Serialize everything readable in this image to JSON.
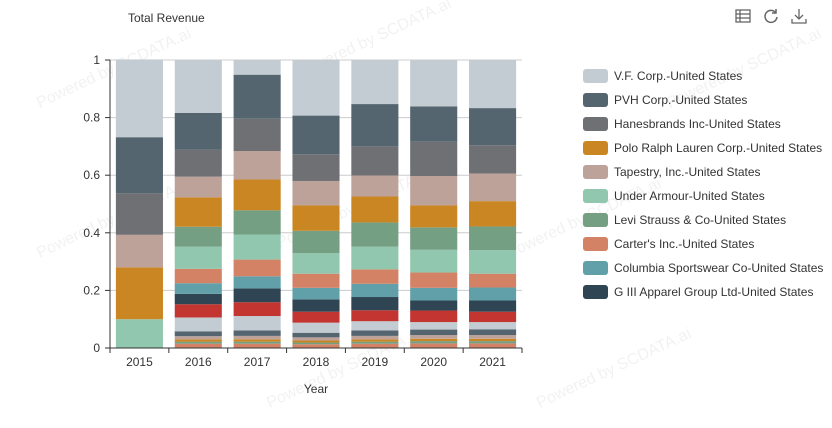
{
  "toolbar": {
    "data_view": "data-view-icon",
    "restore": "refresh-icon",
    "save": "download-icon"
  },
  "watermark": "Powered by SCDATA.ai",
  "chart_data": {
    "type": "bar",
    "stacked": true,
    "title": "Total Revenue",
    "xlabel": "Year",
    "ylabel": "",
    "ylim": [
      0,
      1
    ],
    "yticks": [
      "0",
      "0.2",
      "0.4",
      "0.6",
      "0.8",
      "1"
    ],
    "categories": [
      "2015",
      "2016",
      "2017",
      "2018",
      "2019",
      "2020",
      "2021"
    ],
    "legend_position": "right",
    "series": [
      {
        "name": null,
        "color": "#d48265",
        "values": [
          0,
          0.015,
          0.015,
          0.013,
          0.015,
          0.016,
          0.016
        ]
      },
      {
        "name": null,
        "color": "#749f83",
        "values": [
          0,
          0.007,
          0.007,
          0.006,
          0.007,
          0.008,
          0.008
        ]
      },
      {
        "name": null,
        "color": "#ca8622",
        "values": [
          0,
          0.008,
          0.008,
          0.007,
          0.008,
          0.008,
          0.008
        ]
      },
      {
        "name": null,
        "color": "#bda29a",
        "values": [
          0,
          0.011,
          0.012,
          0.011,
          0.012,
          0.013,
          0.013
        ]
      },
      {
        "name": null,
        "color": "#546570",
        "values": [
          0,
          0.017,
          0.019,
          0.016,
          0.019,
          0.019,
          0.02
        ]
      },
      {
        "name": null,
        "color": "#c4ccd3",
        "values": [
          0,
          0.048,
          0.05,
          0.035,
          0.032,
          0.026,
          0.025
        ]
      },
      {
        "name": null,
        "color": "#c23531",
        "values": [
          0,
          0.046,
          0.048,
          0.038,
          0.038,
          0.04,
          0.036
        ]
      },
      {
        "name": "G III Apparel Group Ltd-United States",
        "color": "#2f4554",
        "values": [
          0,
          0.036,
          0.048,
          0.043,
          0.046,
          0.035,
          0.039
        ]
      },
      {
        "name": "Columbia Sportswear Co-United States",
        "color": "#61a0a8",
        "values": [
          0,
          0.037,
          0.042,
          0.04,
          0.046,
          0.044,
          0.045
        ]
      },
      {
        "name": "Carter's Inc.-United States",
        "color": "#d48265",
        "values": [
          0,
          0.05,
          0.058,
          0.049,
          0.05,
          0.053,
          0.048
        ]
      },
      {
        "name": "Under Armour-United States",
        "color": "#91c7ae",
        "values": [
          0.1,
          0.077,
          0.087,
          0.071,
          0.079,
          0.079,
          0.082
        ]
      },
      {
        "name": "Levi Strauss & Co-United States",
        "color": "#749f83",
        "values": [
          0,
          0.069,
          0.084,
          0.078,
          0.084,
          0.078,
          0.082
        ]
      },
      {
        "name": "Polo Ralph Lauren Corp.-United States",
        "color": "#ca8622",
        "values": [
          0.18,
          0.102,
          0.107,
          0.088,
          0.09,
          0.076,
          0.088
        ]
      },
      {
        "name": "Tapestry, Inc.-United States",
        "color": "#bda29a",
        "values": [
          0.113,
          0.072,
          0.099,
          0.085,
          0.073,
          0.102,
          0.096
        ]
      },
      {
        "name": "Hanesbrands Inc-United States",
        "color": "#6e7074",
        "values": [
          0.144,
          0.093,
          0.112,
          0.093,
          0.102,
          0.119,
          0.098
        ]
      },
      {
        "name": "PVH Corp.-United States",
        "color": "#546570",
        "values": [
          0.195,
          0.128,
          0.153,
          0.134,
          0.146,
          0.123,
          0.129
        ]
      },
      {
        "name": "V.F. Corp.-United States",
        "color": "#c4ccd3",
        "values": [
          0.27,
          0.184,
          0.051,
          0.193,
          0.153,
          0.161,
          0.167
        ]
      }
    ],
    "legend_order": [
      "V.F. Corp.-United States",
      "PVH Corp.-United States",
      "Hanesbrands Inc-United States",
      "Polo Ralph Lauren Corp.-United States",
      "Tapestry, Inc.-United States",
      "Under Armour-United States",
      "Levi Strauss & Co-United States",
      "Carter's Inc.-United States",
      "Columbia Sportswear Co-United States",
      "G III Apparel Group Ltd-United States"
    ]
  }
}
